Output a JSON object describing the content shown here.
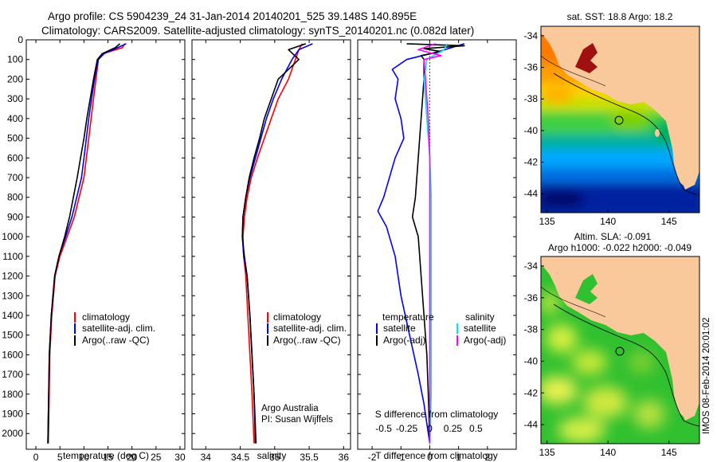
{
  "header": {
    "line1": "Argo profile: CS 5904239_24 31-Jan-2014 20140201_525 39.148S 140.895E",
    "line2": "Climatology: CARS2009. Satellite-adjusted climatology: synTS_20140201.nc (0.082d later)"
  },
  "side_text": "IMOS 08-Feb-2014 20:01:02",
  "colors": {
    "climatology": "#ff0000",
    "satellite": "#0000ff",
    "argo": "#000000",
    "sat_salinity": "#00e5ee",
    "argo_salinity": "#ff00ff",
    "land": "#f9c89b"
  },
  "chart_data": [
    {
      "type": "line",
      "xlabel": "temperature (deg C)",
      "ylabel": "",
      "xlim": [
        -2,
        31
      ],
      "ylim": [
        2080,
        0
      ],
      "y_reversed": true,
      "xticks": [
        0,
        5,
        10,
        15,
        20,
        25,
        30
      ],
      "yticks": [
        0,
        100,
        200,
        300,
        400,
        500,
        600,
        700,
        800,
        900,
        1000,
        1100,
        1200,
        1300,
        1400,
        1500,
        1600,
        1700,
        1800,
        1900,
        2000
      ],
      "legend": {
        "position": "lower-right",
        "entries": [
          "climatology",
          "satellite-adj. clim.",
          "Argo(..raw -QC)"
        ]
      },
      "annotation": "",
      "series": [
        {
          "name": "climatology",
          "color": "#ff0000",
          "x": [
            18.5,
            18,
            14,
            13,
            12.5,
            12,
            11.5,
            11,
            10.5,
            10,
            9,
            8,
            6.5,
            5,
            4,
            3.3,
            2.9,
            2.6
          ],
          "y": [
            20,
            40,
            70,
            100,
            200,
            300,
            400,
            500,
            600,
            700,
            800,
            900,
            1000,
            1100,
            1200,
            1400,
            1600,
            2050
          ]
        },
        {
          "name": "satellite-adj. clim.",
          "color": "#0000ff",
          "x": [
            18.8,
            17,
            14.2,
            13,
            12.2,
            11.6,
            11,
            10.5,
            10,
            9.5,
            8.5,
            7.5,
            6.2,
            4.8,
            3.9,
            3.2,
            2.8,
            2.5
          ],
          "y": [
            20,
            40,
            70,
            100,
            200,
            300,
            400,
            500,
            600,
            700,
            800,
            900,
            1000,
            1100,
            1200,
            1400,
            1600,
            2050
          ]
        },
        {
          "name": "Argo(..raw -QC)",
          "color": "#000000",
          "x": [
            17.5,
            16.5,
            13.8,
            12.8,
            12,
            11.3,
            10.6,
            10,
            9.3,
            8.6,
            7.8,
            7,
            6,
            4.8,
            3.9,
            3.2,
            2.8,
            2.5
          ],
          "y": [
            20,
            40,
            70,
            100,
            200,
            300,
            400,
            500,
            600,
            700,
            800,
            900,
            1000,
            1100,
            1200,
            1400,
            1600,
            2050
          ]
        }
      ]
    },
    {
      "type": "line",
      "xlabel": "salinity",
      "ylabel": "",
      "xlim": [
        33.8,
        36.1
      ],
      "ylim": [
        2080,
        0
      ],
      "y_reversed": true,
      "xticks": [
        34,
        34.5,
        35,
        35.5,
        36
      ],
      "yticks": [],
      "legend": {
        "position": "lower-right",
        "entries": [
          "climatology",
          "satellite-adj. clim.",
          "Argo(..raw -QC)"
        ]
      },
      "annotation": "Argo Australia\nPI: Susan Wijffels",
      "series": [
        {
          "name": "climatology",
          "color": "#ff0000",
          "x": [
            35.4,
            35.35,
            35.3,
            35.2,
            35.05,
            34.95,
            34.85,
            34.75,
            34.66,
            34.6,
            34.56,
            34.54,
            34.55,
            34.58,
            34.61,
            34.64,
            34.67,
            34.7
          ],
          "y": [
            20,
            50,
            100,
            200,
            300,
            400,
            500,
            600,
            700,
            800,
            900,
            1000,
            1100,
            1200,
            1400,
            1600,
            1800,
            2050
          ]
        },
        {
          "name": "satellite-adj. clim.",
          "color": "#0000ff",
          "x": [
            35.55,
            35.35,
            35.25,
            35.1,
            34.98,
            34.88,
            34.8,
            34.72,
            34.64,
            34.58,
            34.54,
            34.53,
            34.55,
            34.6,
            34.64,
            34.67,
            34.7,
            34.73
          ],
          "y": [
            20,
            50,
            100,
            200,
            300,
            400,
            500,
            600,
            700,
            800,
            900,
            1000,
            1100,
            1200,
            1400,
            1600,
            1800,
            2050
          ]
        },
        {
          "name": "Argo(..raw -QC)",
          "color": "#000000",
          "x": [
            35.45,
            35.2,
            35.35,
            35.05,
            34.95,
            34.85,
            34.78,
            34.7,
            34.63,
            34.58,
            34.54,
            34.53,
            34.56,
            34.6,
            34.64,
            34.67,
            34.7,
            34.72
          ],
          "y": [
            20,
            50,
            100,
            200,
            300,
            400,
            500,
            600,
            700,
            800,
            900,
            1000,
            1100,
            1200,
            1400,
            1600,
            1800,
            2050
          ]
        }
      ]
    },
    {
      "type": "line",
      "xlabel": "T difference from climatology",
      "ylabel": "",
      "xlim": [
        -2.5,
        3
      ],
      "ylim": [
        2080,
        0
      ],
      "y_reversed": true,
      "xticks": [
        -2,
        -1,
        0,
        1,
        2
      ],
      "xticks_top": {
        "labels": [
          "-0.5",
          "-0.25",
          "0",
          "0.25",
          "0.5"
        ],
        "values": [
          -1.6,
          -0.8,
          0,
          0.8,
          1.6
        ]
      },
      "xlabel_top": "S difference from climatology",
      "yticks": [],
      "legend": {
        "position": "lower",
        "entries": [
          "temperature",
          "satellite",
          "Argo(-adj)",
          "salinity",
          "satellite",
          "Argo(-adj)"
        ]
      },
      "annotation": "",
      "series": [
        {
          "name": "satellite",
          "color": "#0000ff",
          "x": [
            1.2,
            0.3,
            -0.8,
            -1.3,
            -1.1,
            -1.2,
            -1,
            -0.9,
            -1.2,
            -1.6,
            -1.8,
            -1.5,
            -1.2,
            -1,
            -0.7,
            -0.4,
            -0.2,
            -0.1,
            0
          ],
          "y": [
            20,
            60,
            100,
            150,
            200,
            300,
            400,
            500,
            600,
            800,
            870,
            950,
            1100,
            1300,
            1500,
            1700,
            1850,
            1950,
            2050
          ]
        },
        {
          "name": "Argo(-adj)",
          "color": "#000000",
          "x": [
            -0.8,
            1.2,
            -0.2,
            0.4,
            -0.3,
            -0.2,
            -0.2,
            -0.3,
            -0.4,
            -0.5,
            -0.6,
            -0.4,
            -0.3,
            -0.2,
            -0.1,
            -0.05,
            0
          ],
          "y": [
            20,
            30,
            45,
            60,
            80,
            100,
            200,
            400,
            600,
            800,
            900,
            1000,
            1200,
            1400,
            1600,
            1800,
            2050
          ]
        },
        {
          "name": "salinity satellite",
          "color": "#00e5ee",
          "x": [
            0.6,
            0.5,
            -0.1,
            -0.2,
            -0.1,
            0,
            0.05,
            0.05,
            0.05,
            0.05,
            0.05,
            0
          ],
          "y": [
            20,
            50,
            100,
            200,
            400,
            600,
            800,
            1000,
            1200,
            1500,
            1800,
            2050
          ]
        },
        {
          "name": "salinity Argo(-adj)",
          "color": "#ff00ff",
          "x": [
            0.2,
            -0.4,
            0.4,
            -0.2,
            -0.15,
            -0.1,
            -0.05,
            0,
            0
          ],
          "y": [
            20,
            50,
            80,
            100,
            200,
            300,
            400,
            600,
            2050
          ]
        }
      ]
    },
    {
      "type": "heatmap",
      "title": "sat. SST: 18.8 Argo: 18.2",
      "xlim": [
        134.5,
        147.5
      ],
      "ylim": [
        -45.2,
        -33.4
      ],
      "xticks": [
        135,
        140,
        145
      ],
      "yticks": [
        -34,
        -36,
        -38,
        -40,
        -42,
        -44
      ],
      "marker": {
        "lon": 140.895,
        "lat": -39.148
      }
    },
    {
      "type": "heatmap",
      "title_line1": "Altim. SLA: -0.091",
      "title_line2": "Argo h1000: -0.022 h2000: -0.049",
      "xlim": [
        134.5,
        147.5
      ],
      "ylim": [
        -45.2,
        -33.4
      ],
      "xticks": [
        135,
        140,
        145
      ],
      "yticks": [
        -34,
        -36,
        -38,
        -40,
        -42,
        -44
      ],
      "marker": {
        "lon": 140.895,
        "lat": -39.148
      }
    }
  ]
}
